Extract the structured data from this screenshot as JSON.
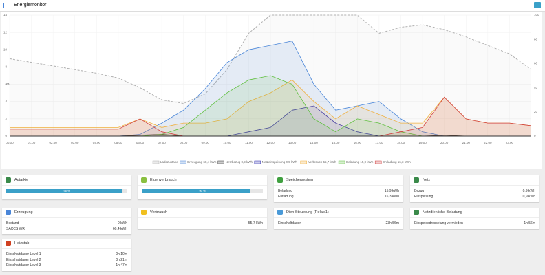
{
  "header": {
    "title": "Energiemonitor"
  },
  "chart_data": {
    "type": "line",
    "ylabel": "kW",
    "x": [
      0,
      1,
      2,
      3,
      4,
      5,
      6,
      7,
      8,
      9,
      10,
      11,
      12,
      13,
      14,
      15,
      16,
      17,
      18,
      19,
      20,
      21,
      22,
      23,
      24
    ],
    "xlim": [
      0,
      24
    ],
    "xticks": [
      {
        "value": 0,
        "label": "00:00"
      },
      {
        "value": 1,
        "label": "01:00"
      },
      {
        "value": 2,
        "label": "02:00"
      },
      {
        "value": 3,
        "label": "03:00"
      },
      {
        "value": 4,
        "label": "04:00"
      },
      {
        "value": 5,
        "label": "05:00"
      },
      {
        "value": 6,
        "label": "06:00"
      },
      {
        "value": 7,
        "label": "07:00"
      },
      {
        "value": 8,
        "label": "08:00"
      },
      {
        "value": 9,
        "label": "09:00"
      },
      {
        "value": 10,
        "label": "10:00"
      },
      {
        "value": 11,
        "label": "11:00"
      },
      {
        "value": 12,
        "label": "12:00"
      },
      {
        "value": 13,
        "label": "13:00"
      },
      {
        "value": 14,
        "label": "14:00"
      },
      {
        "value": 15,
        "label": "15:00"
      },
      {
        "value": 16,
        "label": "16:00"
      },
      {
        "value": 17,
        "label": "17:00"
      },
      {
        "value": 18,
        "label": "18:00"
      },
      {
        "value": 19,
        "label": "19:00"
      },
      {
        "value": 20,
        "label": "20:00"
      },
      {
        "value": 21,
        "label": "21:00"
      },
      {
        "value": 22,
        "label": "22:00"
      },
      {
        "value": 23,
        "label": "23:00"
      }
    ],
    "ylim": [
      0,
      14
    ],
    "yticks": [
      0,
      2,
      4,
      6,
      8,
      10,
      12,
      14
    ],
    "y2lim": [
      0,
      100
    ],
    "y2ticks": [
      0,
      20,
      40,
      60,
      80,
      100
    ],
    "grid": true,
    "legend_position": "bottom",
    "series": [
      {
        "name": "Ladezustand",
        "color": "#b0b0b0",
        "dashed": true,
        "axis": "y2",
        "values": [
          64,
          61,
          58,
          55,
          52,
          48,
          40,
          30,
          27,
          35,
          55,
          85,
          100,
          100,
          100,
          100,
          100,
          85,
          90,
          92,
          88,
          82,
          75,
          68,
          55
        ]
      },
      {
        "name": "Erzeugung 60,4 kWh",
        "color": "#4a86d8",
        "values": [
          0,
          0,
          0,
          0,
          0,
          0,
          0.2,
          1.5,
          3,
          5.5,
          8.5,
          10,
          10.5,
          11,
          6,
          3,
          3.5,
          4,
          2,
          0.5,
          0,
          0,
          0,
          0,
          0
        ]
      },
      {
        "name": "Netzbezug 0,9 kWh",
        "color": "#333333",
        "values": [
          0,
          0,
          0,
          0,
          0,
          0,
          0.1,
          0.2,
          0,
          0,
          0,
          0,
          0,
          0,
          0,
          0,
          0,
          0,
          0,
          0,
          0.1,
          0,
          0,
          0,
          0
        ]
      },
      {
        "name": "Netzeinspeisung 0,9 kWh",
        "color": "#3030b0",
        "values": [
          0,
          0,
          0,
          0,
          0,
          0,
          0,
          0,
          0,
          0,
          0,
          0.5,
          1,
          3,
          3.5,
          1.5,
          0.5,
          0,
          0,
          0,
          0,
          0,
          0,
          0,
          0
        ]
      },
      {
        "name": "Verbrauch 55,7 kWh",
        "color": "#f0b040",
        "values": [
          1,
          1,
          1,
          1,
          1,
          1,
          2,
          1,
          1.5,
          1.5,
          2,
          4,
          5,
          6.5,
          4,
          2,
          3.5,
          2.5,
          1.5,
          1.5,
          4.5,
          2,
          1.5,
          1.5,
          1.2
        ]
      },
      {
        "name": "Beladung 15,9 kWh",
        "color": "#60c040",
        "values": [
          0,
          0,
          0,
          0,
          0,
          0,
          0,
          0.2,
          1,
          3,
          5,
          6.5,
          7,
          6,
          2,
          0.5,
          2,
          1.5,
          0.5,
          0,
          0,
          0,
          0,
          0,
          0
        ]
      },
      {
        "name": "Entladung 16,3 kWh",
        "color": "#d04040",
        "values": [
          0.8,
          0.8,
          0.8,
          0.8,
          0.8,
          0.8,
          2,
          0.5,
          0,
          0,
          0,
          0,
          0,
          0,
          0,
          0,
          0,
          0,
          0.5,
          1,
          4.5,
          2,
          1.5,
          1.5,
          1.2
        ]
      }
    ]
  },
  "cards": [
    {
      "title": "Autarkie",
      "progress": {
        "value": 96,
        "label": "96 %"
      }
    },
    {
      "title": "Eigenverbrauch",
      "progress": {
        "value": 90,
        "label": "90 %"
      }
    },
    {
      "title": "Speichersystem",
      "rows": [
        [
          "Beladung",
          "15,9 kWh"
        ],
        [
          "Entladung",
          "16,3 kWh"
        ]
      ]
    },
    {
      "title": "Netz",
      "rows": [
        [
          "Bezug",
          "0,9 kWh"
        ],
        [
          "Einspeisung",
          "0,9 kWh"
        ]
      ]
    },
    {
      "title": "Erzeugung",
      "rows": [
        [
          "Bestand",
          "0 kWh"
        ],
        [
          "SACCS WR",
          "60,4 kWh"
        ]
      ]
    },
    {
      "title": "Verbrauch",
      "rows": [
        [
          "",
          "55,7 kWh"
        ]
      ]
    },
    {
      "title": "Dien Steuerung (Relais1)",
      "rows": [
        [
          "Einschaltdauer",
          "23h 56m"
        ]
      ]
    },
    {
      "title": "Netzdienliche Beladung",
      "rows": [
        [
          "Einspeisedrosselung vermieden",
          "1h 56m"
        ]
      ]
    },
    {
      "title": "Heizstab",
      "rows": [
        [
          "Einschaltdauer Level 1",
          "0h 10m"
        ],
        [
          "Einschaltdauer Level 2",
          "0h 21m"
        ],
        [
          "Einschaltdauer Level 3",
          "1h 47m"
        ]
      ]
    }
  ]
}
